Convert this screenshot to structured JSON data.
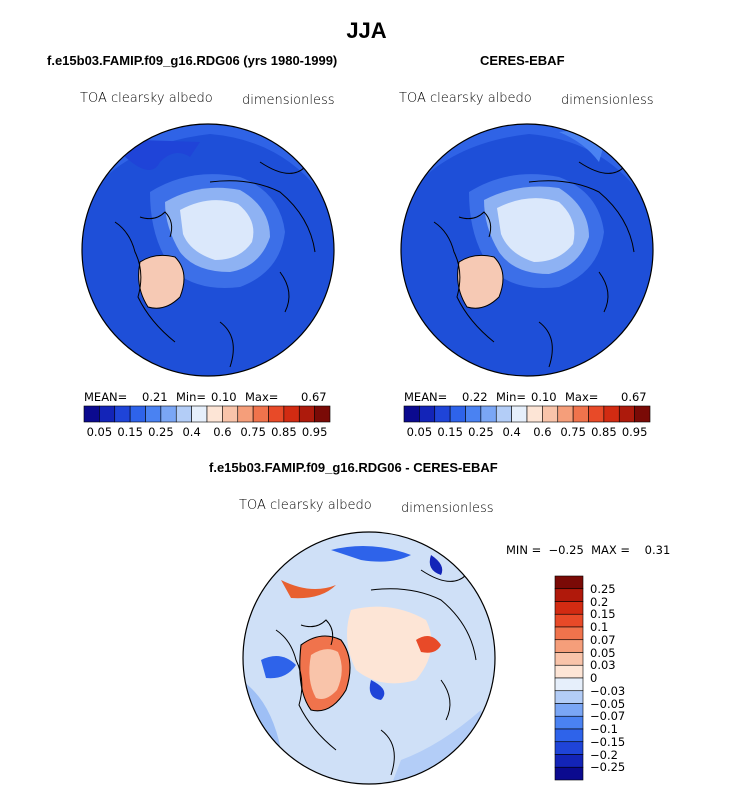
{
  "main_title": "JJA",
  "panels": [
    {
      "title": "f.e15b03.FAMIP.f09_g16.RDG06 (yrs 1980-1999)",
      "variable": "TOA clearsky albedo",
      "units": "dimensionless",
      "stats": {
        "mean_label": "MEAN=",
        "mean": "0.21",
        "min_label": "Min=",
        "min": "0.10",
        "max_label": "Max=",
        "max": "0.67"
      }
    },
    {
      "title": "CERES-EBAF",
      "variable": "TOA clearsky albedo",
      "units": "dimensionless",
      "stats": {
        "mean_label": "MEAN=",
        "mean": "0.22",
        "min_label": "Min=",
        "min": "0.10",
        "max_label": "Max=",
        "max": "0.67"
      }
    }
  ],
  "diff_panel": {
    "title": "f.e15b03.FAMIP.f09_g16.RDG06 - CERES-EBAF",
    "variable": "TOA clearsky albedo",
    "units": "dimensionless",
    "minmax": "MIN =  −0.25  MAX =    0.31"
  },
  "colorbar_main": {
    "labels": [
      "0.05",
      "0.15",
      "0.25",
      "0.4",
      "0.6",
      "0.75",
      "0.85",
      "0.95"
    ],
    "colors": [
      "#0b0a8f",
      "#1324b8",
      "#1f44d8",
      "#2e63ea",
      "#4a82f2",
      "#7aa6f5",
      "#b3cdf7",
      "#e6effb",
      "#fde5d6",
      "#f9c4aa",
      "#f59e7a",
      "#f0734c",
      "#e84a28",
      "#d22b12",
      "#ad1a0c",
      "#7a0a06"
    ]
  },
  "colorbar_diff": {
    "labels": [
      "0.25",
      "0.2",
      "0.15",
      "0.1",
      "0.07",
      "0.05",
      "0.03",
      "0",
      "−0.03",
      "−0.05",
      "−0.07",
      "−0.1",
      "−0.15",
      "−0.2",
      "−0.25"
    ],
    "colors_top_to_bottom": [
      "#7a0a06",
      "#b0190b",
      "#d22b12",
      "#e84a28",
      "#f0734c",
      "#f59e7a",
      "#f9c4aa",
      "#fde5d6",
      "#e6effb",
      "#b3cdf7",
      "#7aa6f5",
      "#4a82f2",
      "#2e63ea",
      "#1f44d8",
      "#1324b8",
      "#0b0a8f"
    ]
  },
  "colors": {
    "ocean": "#1e4fd8",
    "ice": "#dbe8fb",
    "greenland": "#f6c9b4",
    "diff_base": "#cfe0f7",
    "coast": "#000000"
  }
}
